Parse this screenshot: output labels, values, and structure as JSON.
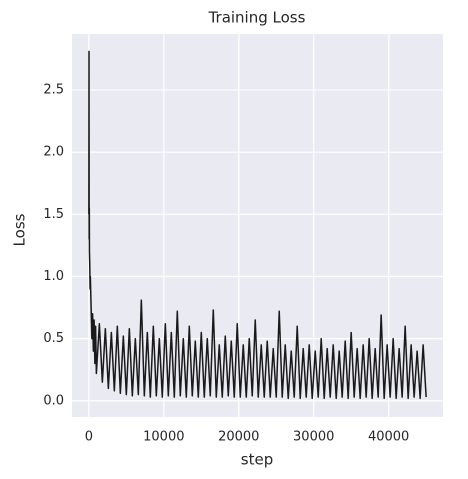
{
  "chart_data": {
    "type": "line",
    "title": "Training Loss",
    "xlabel": "step",
    "ylabel": "Loss",
    "x": [
      0,
      20,
      40,
      60,
      80,
      120,
      160,
      200,
      300,
      400,
      500,
      600,
      700,
      800,
      900,
      1000,
      1400,
      1800,
      2200,
      2600,
      3000,
      3400,
      3800,
      4200,
      4600,
      5000,
      5400,
      5800,
      6200,
      6600,
      7000,
      7400,
      7800,
      8200,
      8600,
      9000,
      9400,
      9800,
      10200,
      10600,
      11000,
      11400,
      11800,
      12200,
      12600,
      13000,
      13400,
      13800,
      14200,
      14600,
      15000,
      15400,
      15800,
      16200,
      16600,
      17000,
      17400,
      17800,
      18200,
      18600,
      19000,
      19400,
      19800,
      20200,
      20600,
      21000,
      21400,
      21800,
      22200,
      22600,
      23000,
      23400,
      23800,
      24200,
      24600,
      25000,
      25400,
      25800,
      26200,
      26600,
      27000,
      27400,
      27800,
      28200,
      28600,
      29000,
      29400,
      29800,
      30200,
      30600,
      31000,
      31400,
      31800,
      32200,
      32600,
      33000,
      33400,
      33800,
      34200,
      34600,
      35000,
      35400,
      35800,
      36200,
      36600,
      37000,
      37400,
      37800,
      38200,
      38600,
      39000,
      39400,
      39800,
      40200,
      40600,
      41000,
      41400,
      41800,
      42200,
      42600,
      43000,
      43400,
      43800,
      44200,
      44600,
      45000
    ],
    "series": [
      {
        "color": "#1a1a1a",
        "values": [
          1.5,
          2.81,
          1.3,
          1.55,
          1.2,
          1.1,
          0.9,
          1.0,
          0.75,
          0.5,
          0.7,
          0.4,
          0.65,
          0.3,
          0.6,
          0.22,
          0.62,
          0.15,
          0.58,
          0.1,
          0.55,
          0.08,
          0.6,
          0.06,
          0.52,
          0.05,
          0.58,
          0.04,
          0.5,
          0.05,
          0.81,
          0.04,
          0.55,
          0.03,
          0.6,
          0.04,
          0.5,
          0.03,
          0.62,
          0.04,
          0.55,
          0.03,
          0.72,
          0.04,
          0.5,
          0.03,
          0.6,
          0.04,
          0.48,
          0.03,
          0.55,
          0.03,
          0.5,
          0.04,
          0.73,
          0.03,
          0.45,
          0.03,
          0.52,
          0.04,
          0.48,
          0.03,
          0.62,
          0.03,
          0.45,
          0.03,
          0.5,
          0.04,
          0.65,
          0.03,
          0.45,
          0.03,
          0.48,
          0.03,
          0.42,
          0.03,
          0.72,
          0.03,
          0.45,
          0.02,
          0.4,
          0.03,
          0.6,
          0.02,
          0.42,
          0.03,
          0.45,
          0.02,
          0.4,
          0.03,
          0.5,
          0.02,
          0.42,
          0.03,
          0.45,
          0.02,
          0.4,
          0.03,
          0.48,
          0.02,
          0.55,
          0.03,
          0.42,
          0.02,
          0.45,
          0.03,
          0.5,
          0.02,
          0.42,
          0.03,
          0.69,
          0.02,
          0.45,
          0.03,
          0.5,
          0.02,
          0.42,
          0.03,
          0.6,
          0.02,
          0.45,
          0.03,
          0.4,
          0.02,
          0.45,
          0.03
        ]
      }
    ],
    "xlim": [
      -2250,
      47250
    ],
    "xticks": [
      0,
      10000,
      20000,
      30000,
      40000
    ],
    "ylim": [
      -0.13,
      2.95
    ],
    "yticks": [
      {
        "value": 0,
        "label": "0.0"
      },
      0.5,
      {
        "value": 1,
        "label": "1.0"
      },
      1.5,
      {
        "value": 2,
        "label": "2.0"
      },
      2.5
    ],
    "grid": true
  }
}
